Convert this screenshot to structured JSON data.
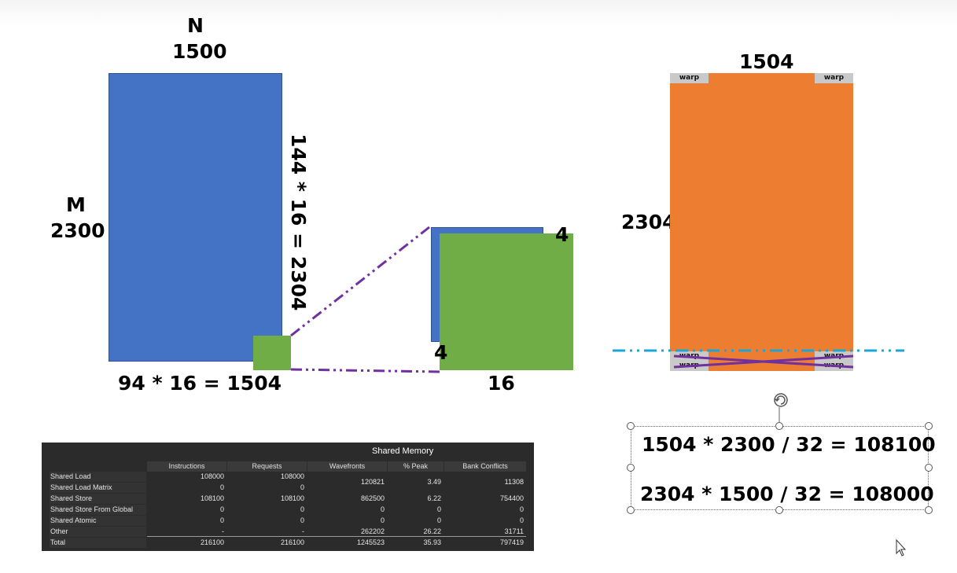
{
  "left_matrix": {
    "col_letter": "N",
    "col_count": "1500",
    "row_letter": "M",
    "row_count": "2300",
    "width_formula": "94 * 16 = 1504",
    "height_formula": "144 * 16 = 2304",
    "color": "#4472C4",
    "tile_color": "#70AD47"
  },
  "zoom_tile": {
    "top_right_label": "4",
    "left_label": "4",
    "bottom_label": "16",
    "back_color": "#4472C4",
    "front_color": "#70AD47",
    "connector_color": "#7030A0"
  },
  "right_matrix": {
    "top_label": "1504",
    "left_label": "2304",
    "warp_label": "warp",
    "color": "#ED7D31",
    "dash_line_color": "#1BA6D8"
  },
  "equations": {
    "line1": "1504 * 2300 / 32 = 108100",
    "line2": "2304 * 1500 / 32 = 108000"
  },
  "shared_memory_table": {
    "title": "Shared Memory",
    "columns": [
      "Instructions",
      "Requests",
      "Wavefronts",
      "% Peak",
      "Bank Conflicts"
    ],
    "rows": [
      {
        "name": "Shared Load",
        "instructions": "108000",
        "requests": "108000"
      },
      {
        "name": "Shared Load Matrix",
        "instructions": "0",
        "requests": "0"
      },
      {
        "name": "Shared Store",
        "instructions": "108100",
        "requests": "108100",
        "wavefronts": "862500",
        "peak": "6.22",
        "bank_conflicts": "754400"
      },
      {
        "name": "Shared Store From Global Load",
        "instructions": "0",
        "requests": "0",
        "wavefronts": "0",
        "peak": "0",
        "bank_conflicts": "0"
      },
      {
        "name": "Shared Atomic",
        "instructions": "0",
        "requests": "0",
        "wavefronts": "0",
        "peak": "0",
        "bank_conflicts": "0"
      },
      {
        "name": "Other",
        "instructions": "-",
        "requests": "-",
        "wavefronts": "262202",
        "peak": "26.22",
        "bank_conflicts": "31711"
      },
      {
        "name": "Total",
        "instructions": "216100",
        "requests": "216100",
        "wavefronts": "1245523",
        "peak": "35.93",
        "bank_conflicts": "797419"
      }
    ],
    "merged_load": {
      "wavefronts": "120821",
      "peak": "3.49",
      "bank_conflicts": "11308"
    }
  }
}
